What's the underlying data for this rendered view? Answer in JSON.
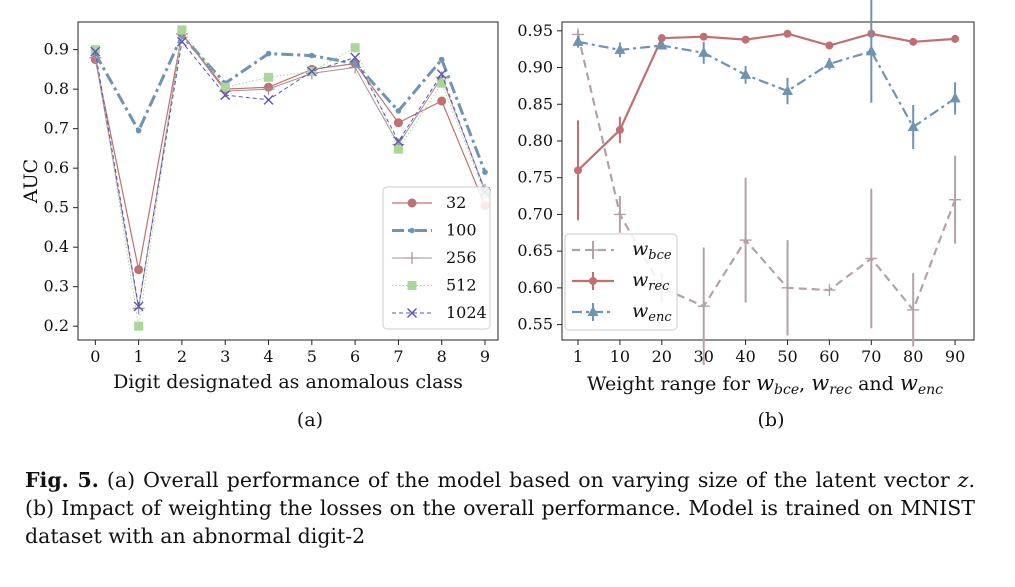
{
  "chart_data": [
    {
      "type": "line",
      "xlabel": "Digit designated as anomalous class",
      "ylabel": "AUC",
      "panel_label": "(a)",
      "x": [
        0,
        1,
        2,
        3,
        4,
        5,
        6,
        7,
        8,
        9
      ],
      "xticks": [
        "0",
        "1",
        "2",
        "3",
        "4",
        "5",
        "6",
        "7",
        "8",
        "9"
      ],
      "yticks": [
        "0.2",
        "0.3",
        "0.4",
        "0.5",
        "0.6",
        "0.7",
        "0.8",
        "0.9"
      ],
      "ylim": [
        0.165,
        0.97
      ],
      "xlim": [
        -0.4,
        9.3
      ],
      "grid": false,
      "legend_position": "lower-right",
      "series": [
        {
          "name": "32",
          "color": "#c07070",
          "values": [
            0.875,
            0.343,
            0.94,
            0.8,
            0.805,
            0.85,
            0.865,
            0.715,
            0.77,
            0.505
          ]
        },
        {
          "name": "100",
          "color": "#6f93b2",
          "values": [
            0.89,
            0.695,
            0.935,
            0.815,
            0.89,
            0.885,
            0.865,
            0.745,
            0.875,
            0.59
          ]
        },
        {
          "name": "256",
          "color": "#a88c95",
          "values": [
            0.88,
            0.245,
            0.94,
            0.795,
            0.8,
            0.84,
            0.855,
            0.66,
            0.83,
            0.545
          ]
        },
        {
          "name": "512",
          "color": "#a8d898",
          "values": [
            0.9,
            0.2,
            0.95,
            0.805,
            0.83,
            0.845,
            0.905,
            0.648,
            0.815,
            0.535
          ]
        },
        {
          "name": "1024",
          "color": "#5858b8",
          "values": [
            0.895,
            0.25,
            0.92,
            0.785,
            0.773,
            0.845,
            0.88,
            0.668,
            0.838,
            0.54
          ]
        }
      ]
    },
    {
      "type": "line",
      "xlabel_prefix": "Weight range for ",
      "xlabel_vars": [
        "w",
        "bce",
        "w",
        "rec",
        "w",
        "enc"
      ],
      "xlabel_and": " and ",
      "panel_label": "(b)",
      "categories": [
        "1",
        "10",
        "20",
        "30",
        "40",
        "50",
        "60",
        "70",
        "80",
        "90"
      ],
      "yticks": [
        "0.55",
        "0.60",
        "0.65",
        "0.70",
        "0.75",
        "0.80",
        "0.85",
        "0.90",
        "0.95"
      ],
      "ylim": [
        0.529,
        0.962
      ],
      "grid": false,
      "legend_position": "lower-left",
      "series": [
        {
          "name": "w",
          "sub": "bce",
          "color": "#b3a2a8",
          "values": [
            0.945,
            0.7,
            0.6,
            0.575,
            0.665,
            0.6,
            0.597,
            0.64,
            0.57,
            0.72
          ],
          "error": [
            0.005,
            0.025,
            0.02,
            0.08,
            0.085,
            0.065,
            0.0,
            0.095,
            0.05,
            0.06
          ]
        },
        {
          "name": "w",
          "sub": "rec",
          "color": "#c07070",
          "values": [
            0.76,
            0.815,
            0.94,
            0.942,
            0.938,
            0.946,
            0.93,
            0.946,
            0.935,
            0.939
          ],
          "error": [
            0.068,
            0.018,
            0.004,
            0.003,
            0.003,
            0.003,
            0.003,
            0.003,
            0.003,
            0.003
          ]
        },
        {
          "name": "w",
          "sub": "enc",
          "color": "#6f93b2",
          "values": [
            0.935,
            0.924,
            0.93,
            0.92,
            0.89,
            0.868,
            0.905,
            0.922,
            0.819,
            0.858
          ],
          "error": [
            0.008,
            0.01,
            0.005,
            0.015,
            0.012,
            0.018,
            0.008,
            0.07,
            0.03,
            0.022
          ]
        }
      ]
    }
  ],
  "caption": {
    "fig_label": "Fig. 5.",
    "line1": "(a) Overall performance of the model based on varying size of the latent vector",
    "line2_var": "z",
    "line2": ". (b) Impact of weighting the losses on the overall performance. Model is trained on",
    "line3": "MNIST dataset with an abnormal digit-2"
  }
}
